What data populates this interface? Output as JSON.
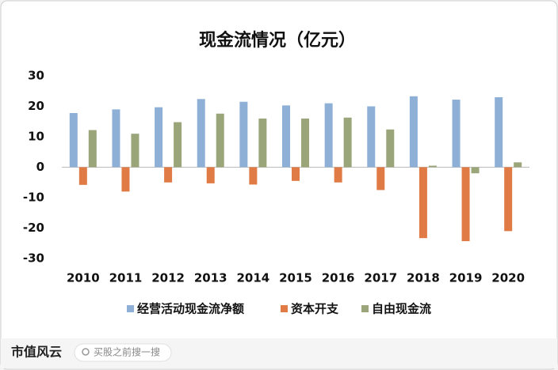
{
  "chart_data": {
    "type": "bar",
    "title": "现金流情况（亿元）",
    "categories": [
      "2010",
      "2011",
      "2012",
      "2013",
      "2014",
      "2015",
      "2016",
      "2017",
      "2018",
      "2019",
      "2020"
    ],
    "series": [
      {
        "name": "经营活动现金流净额",
        "color": "#8fb0d6",
        "values": [
          17.8,
          19,
          19.7,
          22.4,
          21.5,
          20.3,
          21,
          20,
          23.3,
          22.2,
          23
        ]
      },
      {
        "name": "资本开支",
        "color": "#e07b45",
        "values": [
          -5.8,
          -8,
          -5,
          -5.3,
          -5.7,
          -4.5,
          -5,
          -7.5,
          -23.3,
          -24.3,
          -21
        ]
      },
      {
        "name": "自由现金流",
        "color": "#9aa57a",
        "values": [
          12.2,
          11,
          14.8,
          17.6,
          16,
          16,
          16.3,
          12.4,
          0.5,
          -2,
          1.6
        ]
      }
    ],
    "ylim": [
      -30,
      30
    ],
    "yticks": [
      -30,
      -20,
      -10,
      0,
      10,
      20,
      30
    ],
    "grid": false,
    "legend": "bottom"
  },
  "footer": {
    "logo": "市值风云",
    "search": "买股之前搜一搜"
  }
}
